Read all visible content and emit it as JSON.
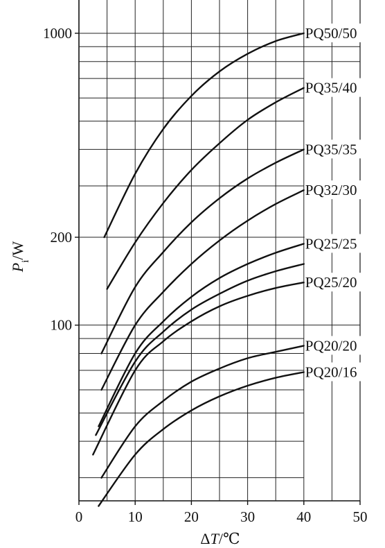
{
  "chart_data": {
    "type": "line",
    "title": "",
    "xlabel": {
      "prefix": "Δ",
      "variable": "T",
      "unit": "/℃"
    },
    "ylabel": {
      "variable": "P",
      "subscript": "i",
      "unit": "/W"
    },
    "x_scale": "linear",
    "y_scale": "log",
    "xlim": [
      0,
      50
    ],
    "ylim": [
      25,
      1300
    ],
    "x_ticks": [
      0,
      10,
      20,
      30,
      40,
      50
    ],
    "y_ticks": [
      100,
      200,
      1000
    ],
    "x_tick_labels": [
      "0",
      "10",
      "20",
      "30",
      "40",
      "50"
    ],
    "y_tick_labels": [
      "100",
      "200",
      "1000"
    ],
    "grid": true,
    "legend": "labels at line ends (right)",
    "series": [
      {
        "name": "PQ50/50",
        "x": [
          4.5,
          10,
          15,
          20,
          25,
          30,
          35,
          40
        ],
        "y": [
          200,
          330,
          470,
          610,
          740,
          850,
          940,
          1000
        ]
      },
      {
        "name": "PQ35/40",
        "x": [
          5,
          10,
          15,
          20,
          25,
          30,
          35,
          40
        ],
        "y": [
          133,
          192,
          262,
          340,
          420,
          505,
          580,
          650
        ]
      },
      {
        "name": "PQ35/35",
        "x": [
          4,
          10,
          15,
          20,
          25,
          30,
          35,
          40
        ],
        "y": [
          80,
          135,
          178,
          225,
          272,
          318,
          360,
          400
        ]
      },
      {
        "name": "PQ32/30",
        "x": [
          4,
          10,
          15,
          20,
          25,
          30,
          35,
          40
        ],
        "y": [
          60,
          100,
          130,
          162,
          195,
          228,
          260,
          290
        ]
      },
      {
        "name": "PQ25/25",
        "x": [
          3.5,
          10,
          15,
          20,
          25,
          30,
          35,
          40
        ],
        "y": [
          45,
          80,
          103,
          125,
          145,
          162,
          177,
          190
        ]
      },
      {
        "name": "",
        "x": [
          3,
          10,
          15,
          20,
          25,
          30,
          35,
          40
        ],
        "y": [
          42,
          75,
          95,
          113,
          128,
          142,
          153,
          162
        ]
      },
      {
        "name": "PQ25/20",
        "x": [
          2.5,
          10,
          15,
          20,
          25,
          30,
          35,
          40
        ],
        "y": [
          36,
          70,
          88,
          103,
          116,
          126,
          134,
          140
        ]
      },
      {
        "name": "PQ20/20",
        "x": [
          4,
          10,
          15,
          20,
          25,
          30,
          35,
          40
        ],
        "y": [
          30,
          45,
          55,
          64,
          71,
          77,
          81,
          85
        ]
      },
      {
        "name": "PQ20/16",
        "x": [
          3.5,
          10,
          15,
          20,
          25,
          30,
          35,
          40
        ],
        "y": [
          24,
          36,
          44,
          51,
          57,
          62,
          66,
          69
        ]
      }
    ]
  }
}
